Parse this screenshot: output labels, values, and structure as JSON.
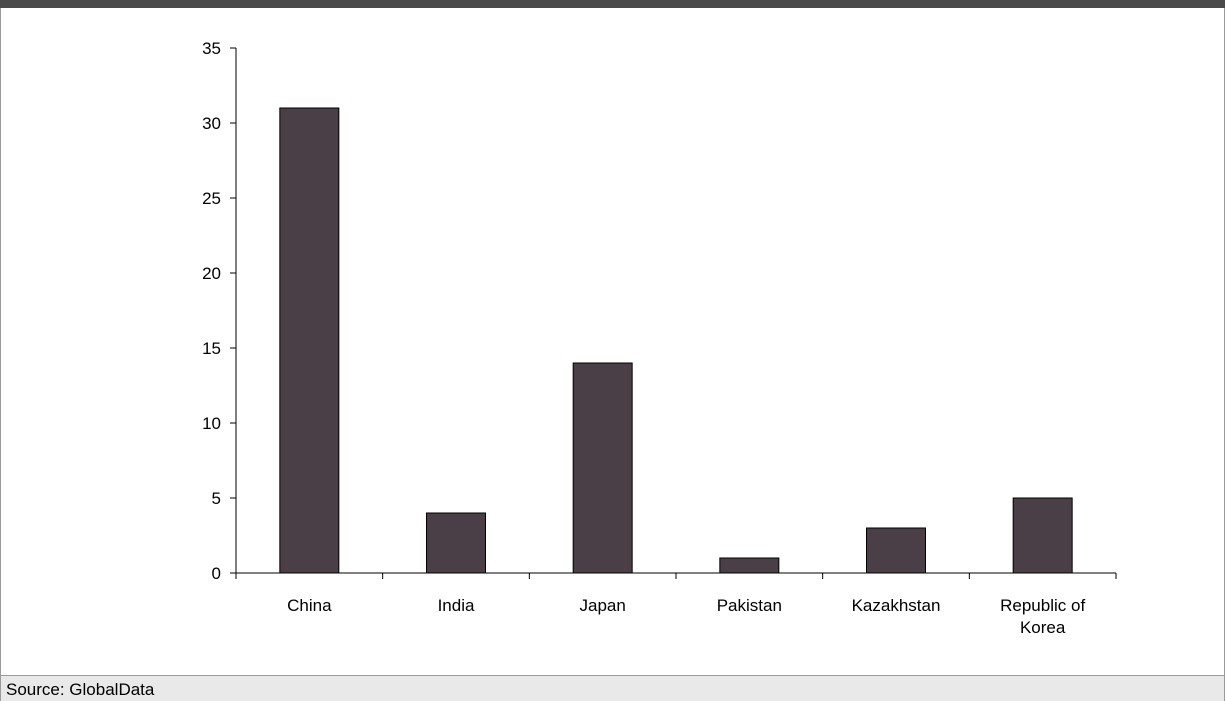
{
  "footer": {
    "source": "Source: GlobalData"
  },
  "chart_data": {
    "type": "bar",
    "title": "",
    "xlabel": "",
    "ylabel": "",
    "categories": [
      [
        "China"
      ],
      [
        "India"
      ],
      [
        "Japan"
      ],
      [
        "Pakistan"
      ],
      [
        "Kazakhstan"
      ],
      [
        "Republic of",
        "Korea"
      ]
    ],
    "values": [
      31,
      4,
      14,
      1,
      3,
      5
    ],
    "ylim": [
      0,
      35
    ],
    "yticks": [
      0,
      5,
      10,
      15,
      20,
      25,
      30,
      35
    ],
    "grid": false,
    "legend": "none",
    "bar_color": "#4a3f47",
    "bar_edge_color": "#000000"
  }
}
